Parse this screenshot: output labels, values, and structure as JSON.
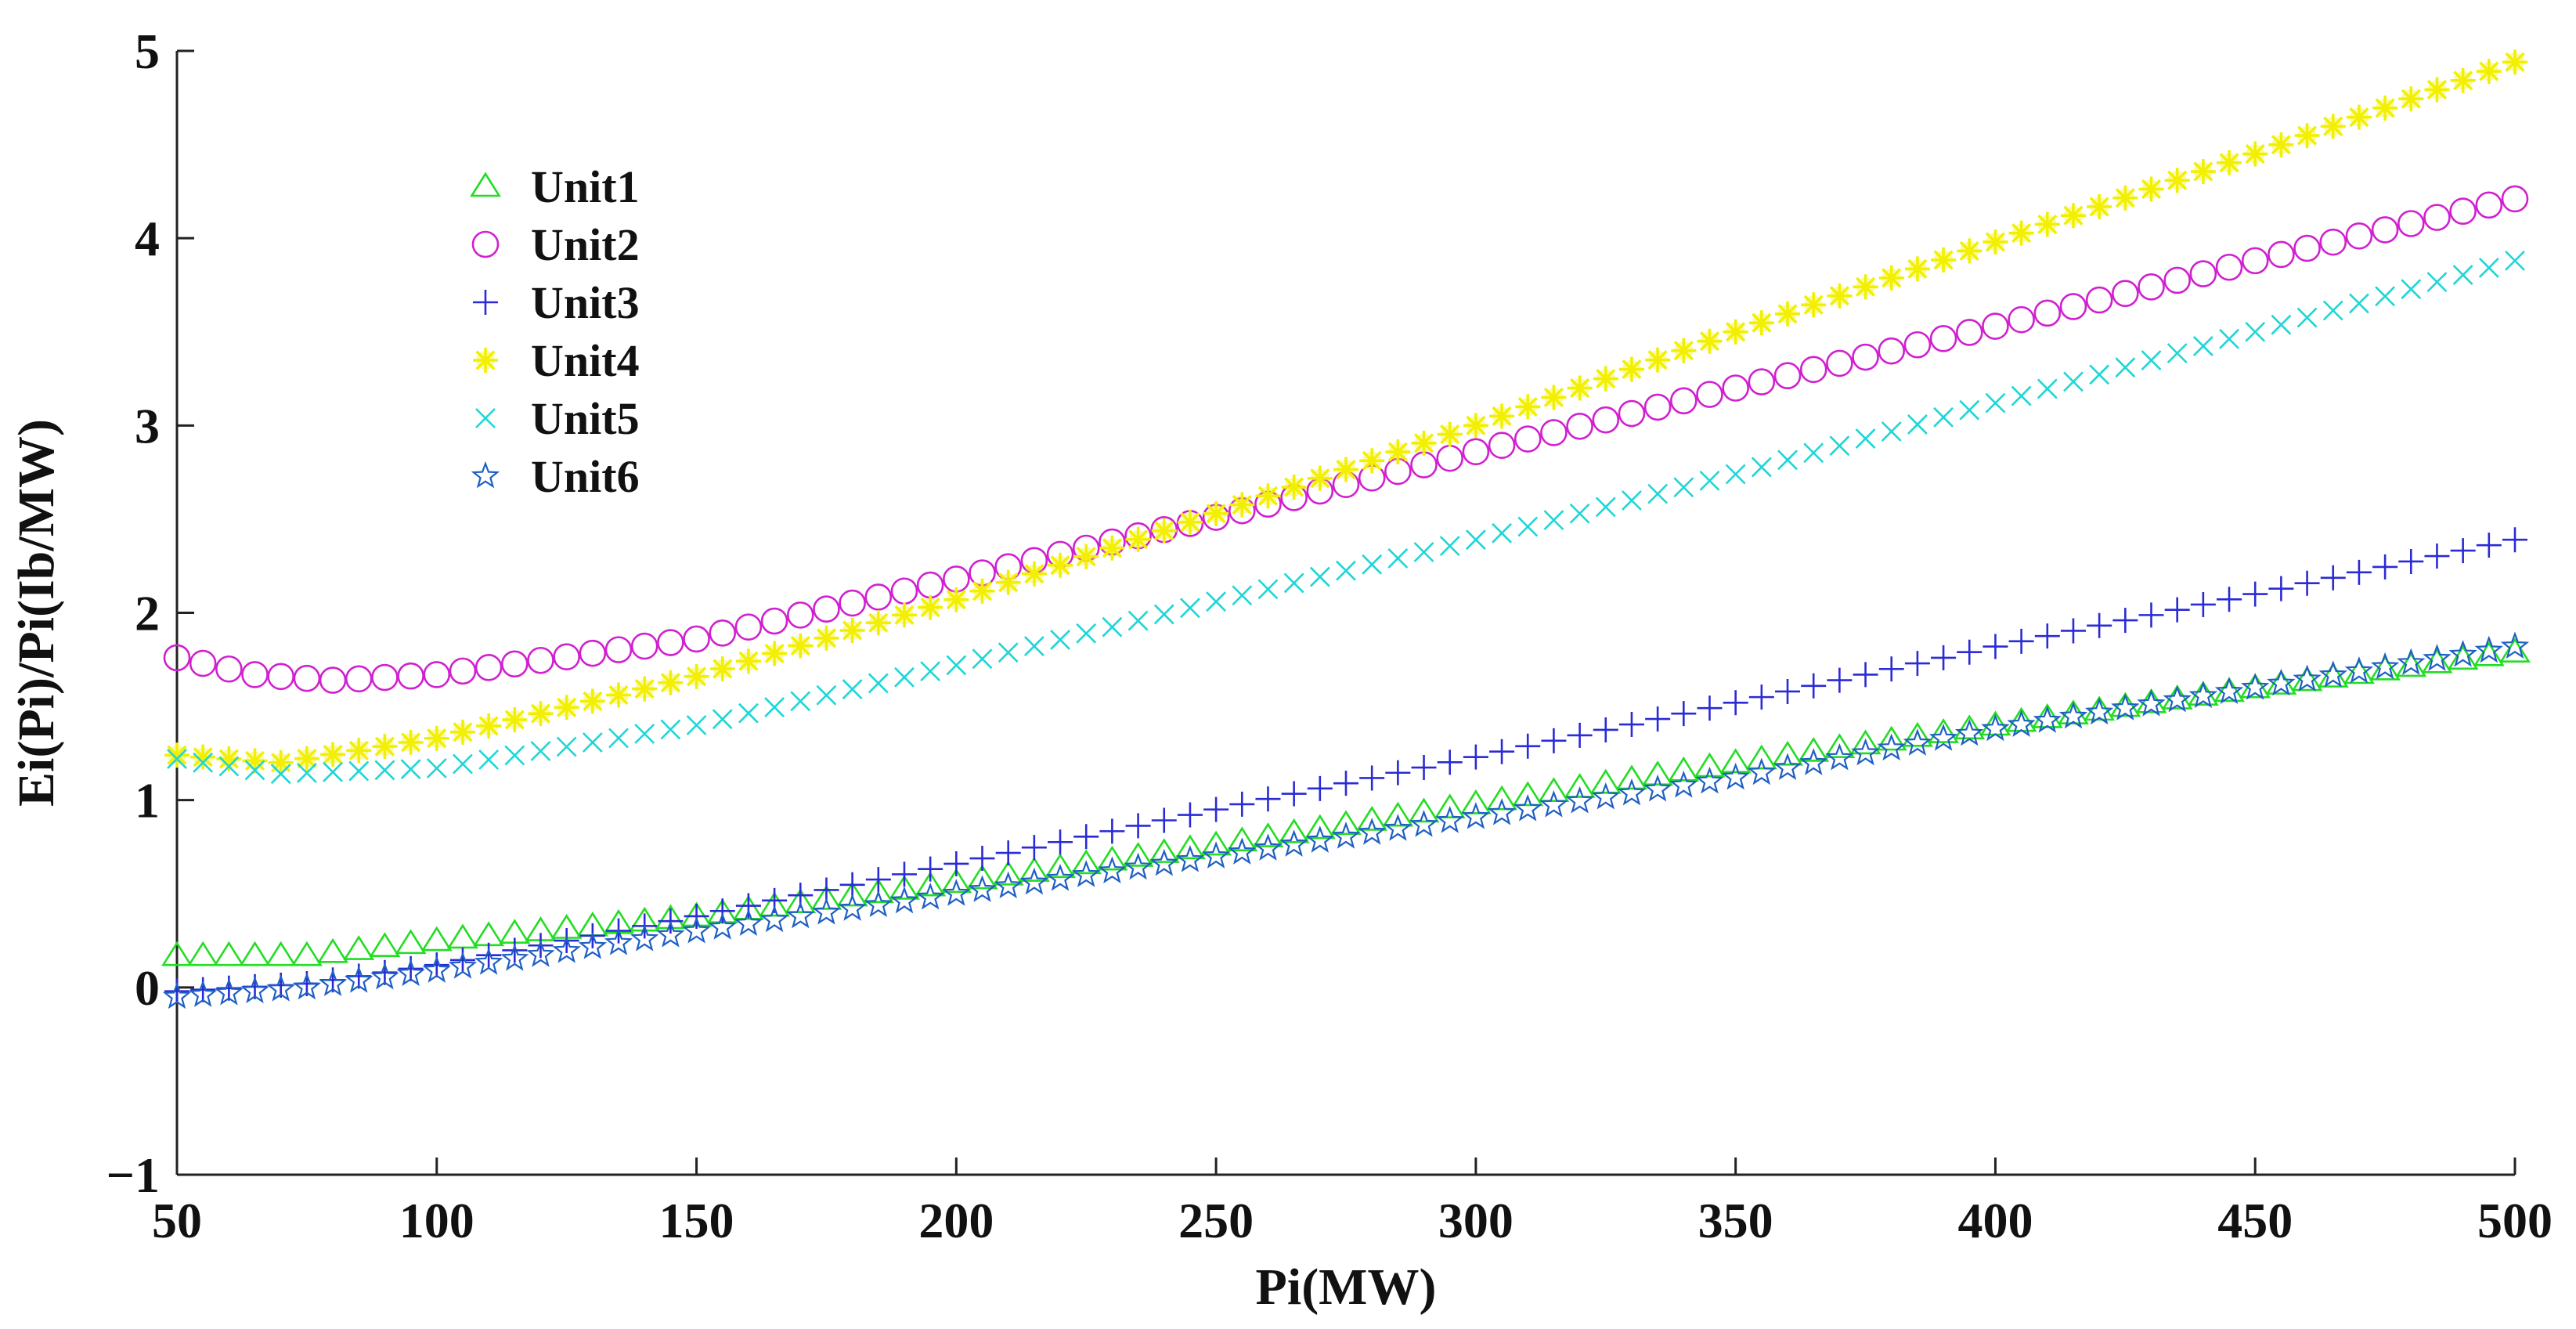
{
  "chart_data": {
    "type": "scatter",
    "title": "",
    "xlabel": "Pi(MW)",
    "ylabel": "Ei(Pi)/Pi(Ib/MW)",
    "xlim": [
      50,
      500
    ],
    "ylim": [
      -1,
      5
    ],
    "xticks": [
      50,
      100,
      150,
      200,
      250,
      300,
      350,
      400,
      450,
      500
    ],
    "yticks": [
      -1,
      0,
      1,
      2,
      3,
      4,
      5
    ],
    "xtick_labels": [
      "50",
      "100",
      "150",
      "200",
      "250",
      "300",
      "350",
      "400",
      "450",
      "500"
    ],
    "ytick_labels": [
      "−1",
      "0",
      "1",
      "2",
      "3",
      "4",
      "5"
    ],
    "grid": false,
    "legend_position": "top-left",
    "x_sampling": {
      "start": 50,
      "end": 500,
      "step": 5
    },
    "series": [
      {
        "name": "Unit1",
        "marker": "triangle",
        "color": "#22dd22",
        "points": [
          [
            50,
            0.17
          ],
          [
            75,
            0.17
          ],
          [
            100,
            0.25
          ],
          [
            150,
            0.38
          ],
          [
            200,
            0.56
          ],
          [
            250,
            0.76
          ],
          [
            300,
            0.98
          ],
          [
            350,
            1.2
          ],
          [
            400,
            1.4
          ],
          [
            450,
            1.6
          ],
          [
            500,
            1.79
          ]
        ]
      },
      {
        "name": "Unit2",
        "marker": "circle",
        "color": "#d020d0",
        "points": [
          [
            50,
            1.76
          ],
          [
            65,
            1.67
          ],
          [
            80,
            1.64
          ],
          [
            100,
            1.67
          ],
          [
            150,
            1.86
          ],
          [
            200,
            2.18
          ],
          [
            250,
            2.51
          ],
          [
            300,
            2.86
          ],
          [
            350,
            3.2
          ],
          [
            400,
            3.53
          ],
          [
            450,
            3.88
          ],
          [
            500,
            4.21
          ]
        ]
      },
      {
        "name": "Unit3",
        "marker": "plus",
        "color": "#2a2ad6",
        "points": [
          [
            50,
            -0.02
          ],
          [
            75,
            0.02
          ],
          [
            100,
            0.12
          ],
          [
            150,
            0.38
          ],
          [
            200,
            0.66
          ],
          [
            250,
            0.95
          ],
          [
            300,
            1.23
          ],
          [
            350,
            1.52
          ],
          [
            400,
            1.82
          ],
          [
            450,
            2.1
          ],
          [
            500,
            2.39
          ]
        ]
      },
      {
        "name": "Unit4",
        "marker": "asterisk",
        "color": "#f2f000",
        "points": [
          [
            50,
            1.24
          ],
          [
            70,
            1.2
          ],
          [
            100,
            1.33
          ],
          [
            150,
            1.66
          ],
          [
            200,
            2.07
          ],
          [
            250,
            2.53
          ],
          [
            300,
            3.0
          ],
          [
            350,
            3.5
          ],
          [
            400,
            3.98
          ],
          [
            450,
            4.45
          ],
          [
            500,
            4.94
          ]
        ]
      },
      {
        "name": "Unit5",
        "marker": "x",
        "color": "#1ed6d6",
        "points": [
          [
            50,
            1.22
          ],
          [
            70,
            1.14
          ],
          [
            100,
            1.17
          ],
          [
            150,
            1.4
          ],
          [
            200,
            1.72
          ],
          [
            250,
            2.06
          ],
          [
            300,
            2.39
          ],
          [
            350,
            2.74
          ],
          [
            400,
            3.12
          ],
          [
            450,
            3.5
          ],
          [
            500,
            3.88
          ]
        ]
      },
      {
        "name": "Unit6",
        "marker": "pentagram",
        "color": "#1f5fc4",
        "points": [
          [
            50,
            -0.05
          ],
          [
            75,
            0.0
          ],
          [
            100,
            0.09
          ],
          [
            150,
            0.3
          ],
          [
            200,
            0.5
          ],
          [
            250,
            0.7
          ],
          [
            300,
            0.91
          ],
          [
            350,
            1.12
          ],
          [
            400,
            1.38
          ],
          [
            450,
            1.6
          ],
          [
            500,
            1.82
          ]
        ]
      }
    ]
  }
}
